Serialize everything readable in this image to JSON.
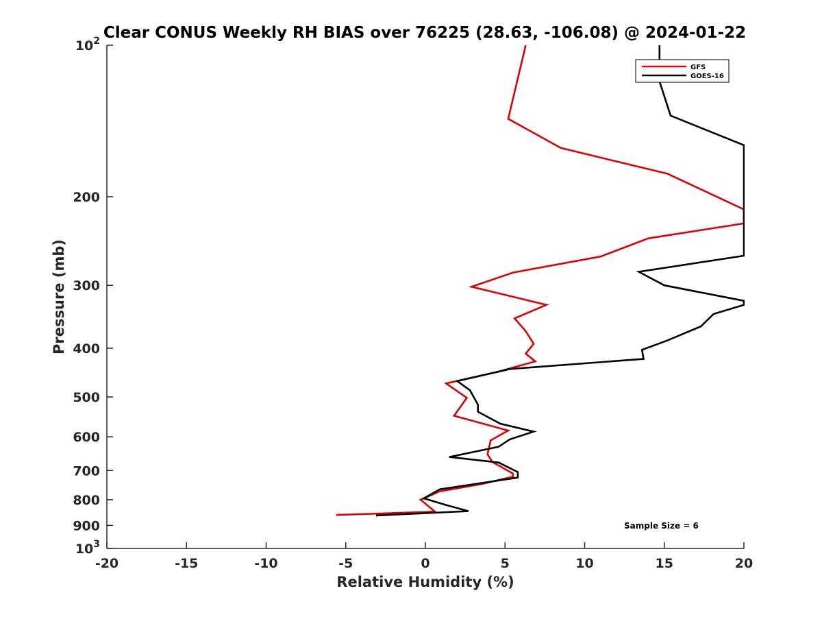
{
  "chart_data": {
    "type": "line",
    "title": "Clear CONUS Weekly RH BIAS over 76225 (28.63, -106.08) @ 2024-01-22",
    "xlabel": "Relative Humidity (%)",
    "ylabel": "Pressure (mb)",
    "xlim": [
      -20,
      20
    ],
    "ylim": [
      100,
      1000
    ],
    "y_scale": "log",
    "y_reversed": true,
    "grid": false,
    "legend_position": "top-right",
    "x_ticks": [
      "-20",
      "-15",
      "-10",
      "-5",
      "0",
      "5",
      "10",
      "15",
      "20"
    ],
    "y_ticks": [
      {
        "base": "10",
        "exp": "2"
      },
      {
        "base": "200",
        "exp": ""
      },
      {
        "base": "300",
        "exp": ""
      },
      {
        "base": "400",
        "exp": ""
      },
      {
        "base": "500",
        "exp": ""
      },
      {
        "base": "600",
        "exp": ""
      },
      {
        "base": "700",
        "exp": ""
      },
      {
        "base": "800",
        "exp": ""
      },
      {
        "base": "900",
        "exp": ""
      },
      {
        "base": "10",
        "exp": "3"
      }
    ],
    "annotation": "Sample Size = 6",
    "series": [
      {
        "name": "GFS",
        "color": "#e00000",
        "points": [
          {
            "x": 6.3,
            "y": 100
          },
          {
            "x": 5.2,
            "y": 140
          },
          {
            "x": 8.5,
            "y": 160
          },
          {
            "x": 15.2,
            "y": 180
          },
          {
            "x": 20.0,
            "y": 212
          },
          {
            "x": 20.0,
            "y": 226
          },
          {
            "x": 14.0,
            "y": 242
          },
          {
            "x": 11.0,
            "y": 263
          },
          {
            "x": 5.5,
            "y": 283
          },
          {
            "x": 2.9,
            "y": 302
          },
          {
            "x": 7.6,
            "y": 328
          },
          {
            "x": 5.6,
            "y": 349
          },
          {
            "x": 6.3,
            "y": 370
          },
          {
            "x": 6.8,
            "y": 392
          },
          {
            "x": 6.3,
            "y": 410
          },
          {
            "x": 6.9,
            "y": 425
          },
          {
            "x": 4.5,
            "y": 446
          },
          {
            "x": 1.3,
            "y": 470
          },
          {
            "x": 2.6,
            "y": 502
          },
          {
            "x": 1.8,
            "y": 545
          },
          {
            "x": 5.2,
            "y": 583
          },
          {
            "x": 4.1,
            "y": 610
          },
          {
            "x": 3.9,
            "y": 650
          },
          {
            "x": 4.2,
            "y": 673
          },
          {
            "x": 5.5,
            "y": 710
          },
          {
            "x": 5.5,
            "y": 720
          },
          {
            "x": 3.5,
            "y": 745
          },
          {
            "x": 0.9,
            "y": 770
          },
          {
            "x": -0.3,
            "y": 800
          },
          {
            "x": 0.6,
            "y": 845
          },
          {
            "x": -5.6,
            "y": 858
          }
        ]
      },
      {
        "name": "GOES-16",
        "color": "#000000",
        "points": [
          {
            "x": 14.7,
            "y": 100
          },
          {
            "x": 14.7,
            "y": 118
          },
          {
            "x": 15.4,
            "y": 138
          },
          {
            "x": 20.0,
            "y": 158
          },
          {
            "x": 20.0,
            "y": 262
          },
          {
            "x": 13.4,
            "y": 282
          },
          {
            "x": 15.0,
            "y": 300
          },
          {
            "x": 20.0,
            "y": 322
          },
          {
            "x": 20.0,
            "y": 328
          },
          {
            "x": 18.1,
            "y": 342
          },
          {
            "x": 17.3,
            "y": 362
          },
          {
            "x": 15.2,
            "y": 386
          },
          {
            "x": 13.6,
            "y": 403
          },
          {
            "x": 13.7,
            "y": 420
          },
          {
            "x": 5.3,
            "y": 440
          },
          {
            "x": 2.0,
            "y": 465
          },
          {
            "x": 2.8,
            "y": 485
          },
          {
            "x": 3.3,
            "y": 518
          },
          {
            "x": 3.3,
            "y": 535
          },
          {
            "x": 4.7,
            "y": 565
          },
          {
            "x": 6.8,
            "y": 586
          },
          {
            "x": 5.3,
            "y": 607
          },
          {
            "x": 4.6,
            "y": 628
          },
          {
            "x": 1.5,
            "y": 658
          },
          {
            "x": 4.6,
            "y": 675
          },
          {
            "x": 5.8,
            "y": 705
          },
          {
            "x": 5.8,
            "y": 723
          },
          {
            "x": 0.9,
            "y": 763
          },
          {
            "x": -0.1,
            "y": 795
          },
          {
            "x": 1.2,
            "y": 818
          },
          {
            "x": 2.7,
            "y": 843
          },
          {
            "x": -3.1,
            "y": 860
          }
        ]
      }
    ]
  }
}
